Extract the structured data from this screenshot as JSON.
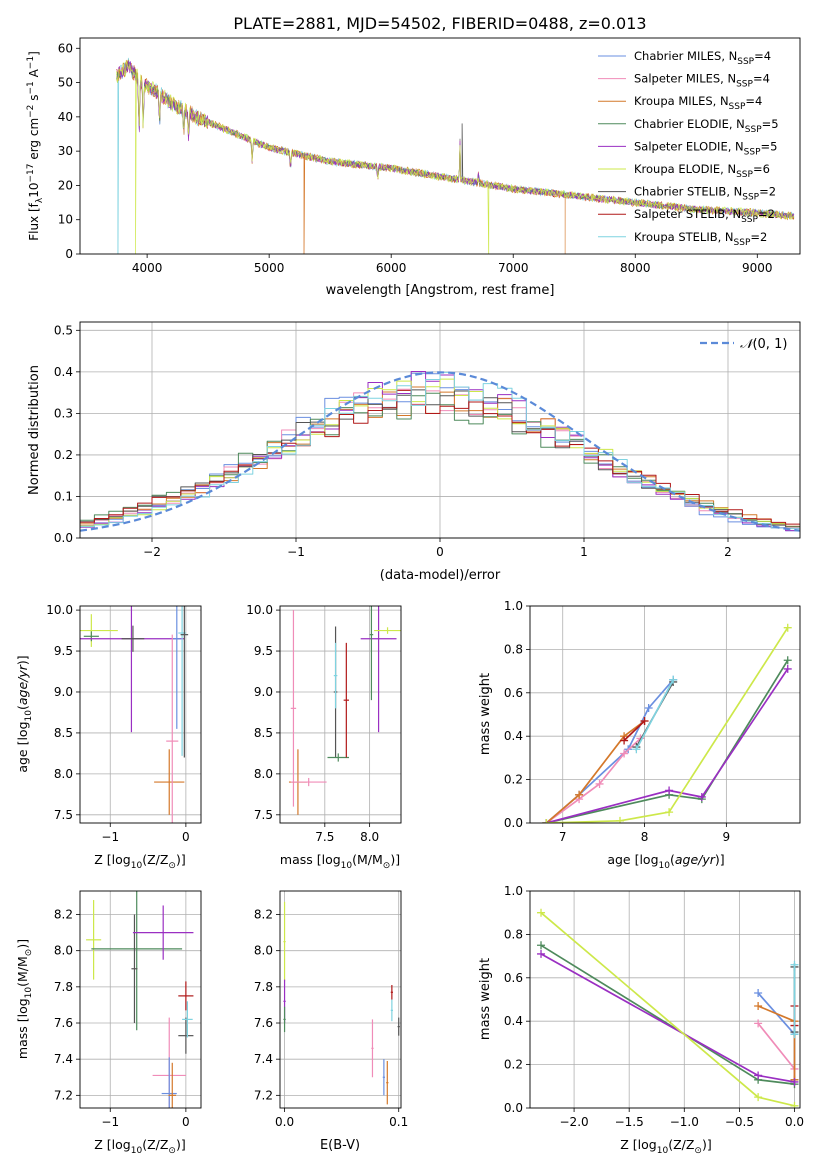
{
  "title": "PLATE=2881, MJD=54502, FIBERID=0488, z=0.013",
  "colors": {
    "Chabrier MILES": "#6a8fe0",
    "Salpeter MILES": "#f08cb8",
    "Kroupa MILES": "#d4782a",
    "Chabrier ELODIE": "#4e8a5c",
    "Salpeter ELODIE": "#9a2fc2",
    "Kroupa ELODIE": "#cde84a",
    "Chabrier STELIB": "#555555",
    "Salpeter STELIB": "#b01818",
    "Kroupa STELIB": "#7fd3e0"
  },
  "chart_data": [
    {
      "id": "spectrum",
      "type": "line",
      "xlabel": "wavelength [Angstrom, rest frame]",
      "ylabel_parts": [
        "Flux [f",
        "λ",
        "10",
        "−17",
        " erg cm",
        "−2",
        " s",
        "−1",
        " A",
        "−1",
        "]"
      ],
      "xlim": [
        3450,
        9350
      ],
      "ylim": [
        0,
        63
      ],
      "xticks": [
        4000,
        5000,
        6000,
        7000,
        8000,
        9000
      ],
      "yticks": [
        0,
        10,
        20,
        30,
        40,
        50,
        60
      ],
      "legend_position": "top-right",
      "legend": [
        {
          "base": "Chabrier MILES, N",
          "sub": "SSP",
          "tail": "=4"
        },
        {
          "base": "Salpeter MILES, N",
          "sub": "SSP",
          "tail": "=4"
        },
        {
          "base": "Kroupa MILES, N",
          "sub": "SSP",
          "tail": "=4"
        },
        {
          "base": "Chabrier ELODIE, N",
          "sub": "SSP",
          "tail": "=5"
        },
        {
          "base": "Salpeter ELODIE, N",
          "sub": "SSP",
          "tail": "=5"
        },
        {
          "base": "Kroupa ELODIE, N",
          "sub": "SSP",
          "tail": "=6"
        },
        {
          "base": "Chabrier STELIB, N",
          "sub": "SSP",
          "tail": "=2"
        },
        {
          "base": "Salpeter STELIB, N",
          "sub": "SSP",
          "tail": "=2"
        },
        {
          "base": "Kroupa STELIB, N",
          "sub": "SSP",
          "tail": "=2"
        }
      ],
      "continuum": [
        [
          3750,
          52
        ],
        [
          3850,
          55
        ],
        [
          3950,
          50
        ],
        [
          4050,
          48
        ],
        [
          4200,
          44
        ],
        [
          4400,
          40
        ],
        [
          4600,
          37
        ],
        [
          4800,
          34
        ],
        [
          5000,
          31
        ],
        [
          5500,
          27
        ],
        [
          6000,
          25
        ],
        [
          6500,
          22
        ],
        [
          7000,
          19
        ],
        [
          7500,
          17
        ],
        [
          8000,
          15
        ],
        [
          8500,
          13
        ],
        [
          9000,
          12
        ],
        [
          9300,
          11
        ]
      ],
      "absorption": [
        [
          3934,
          15
        ],
        [
          3968,
          12
        ],
        [
          4102,
          8
        ],
        [
          4300,
          6
        ],
        [
          4340,
          8
        ],
        [
          4861,
          6
        ],
        [
          5175,
          4
        ],
        [
          5890,
          3
        ]
      ],
      "emission": [
        [
          6563,
          12
        ],
        [
          6716,
          3
        ]
      ],
      "spikes": [
        [
          3760,
          0,
          "Kroupa STELIB"
        ],
        [
          3905,
          0,
          "Kroupa ELODIE"
        ],
        [
          5285,
          0,
          "Kroupa MILES"
        ],
        [
          6580,
          38,
          "Chabrier STELIB"
        ],
        [
          6800,
          0,
          "Kroupa ELODIE"
        ],
        [
          7425,
          0,
          "Kroupa MILES"
        ]
      ]
    },
    {
      "id": "residuals",
      "type": "histogram",
      "xlabel": "(data-model)/error",
      "ylabel": "Normed distribution",
      "xlim": [
        -2.5,
        2.5
      ],
      "ylim": [
        0,
        0.52
      ],
      "xticks": [
        -2,
        -1,
        0,
        1,
        2
      ],
      "yticks": [
        0.0,
        0.1,
        0.2,
        0.3,
        0.4,
        0.5
      ],
      "grid": true,
      "bin_width": 0.1,
      "bin_start": -2.5,
      "reference_curve": "N(0,1)",
      "legend_position": "top-right",
      "legend_parts": [
        "𝒩",
        "(0, 1)"
      ]
    },
    {
      "id": "age-vs-Z",
      "type": "errorbar",
      "xlabel_parts": [
        "Z [log",
        "10",
        "(Z/Z",
        "⊙",
        ")]"
      ],
      "ylabel_parts": [
        "age  [log",
        "10",
        "(",
        "age/yr",
        ")]"
      ],
      "xlim": [
        -1.4,
        0.2
      ],
      "ylim": [
        7.4,
        10.05
      ],
      "xticks": [
        -1,
        0
      ],
      "yticks": [
        7.5,
        8.0,
        8.5,
        9.0,
        9.5,
        10.0
      ],
      "grid": true
    },
    {
      "id": "age-vs-mass",
      "type": "errorbar",
      "xlabel_parts": [
        "mass [log",
        "10",
        "(M/M",
        "⊙",
        ")]"
      ],
      "xlim": [
        7.0,
        8.35
      ],
      "ylim": [
        7.4,
        10.05
      ],
      "xticks": [
        7.5,
        8.0
      ],
      "yticks": [
        7.5,
        8.0,
        8.5,
        9.0,
        9.5,
        10.0
      ],
      "grid": true
    },
    {
      "id": "massweight-vs-age",
      "type": "line",
      "xlabel_parts": [
        "age  [log",
        "10",
        "(",
        "age/yr",
        ")]"
      ],
      "ylabel": "mass weight",
      "xlim": [
        6.6,
        9.9
      ],
      "ylim": [
        0,
        1
      ],
      "xticks": [
        7,
        8,
        9
      ],
      "yticks": [
        0.0,
        0.2,
        0.4,
        0.6,
        0.8,
        1.0
      ],
      "grid": true,
      "series": [
        {
          "name": "Chabrier MILES",
          "x": [
            6.8,
            7.2,
            7.8,
            8.05,
            8.35
          ],
          "y": [
            0.0,
            0.13,
            0.34,
            0.53,
            0.66
          ]
        },
        {
          "name": "Salpeter MILES",
          "x": [
            6.8,
            7.2,
            7.45,
            7.75,
            7.95
          ],
          "y": [
            0.0,
            0.11,
            0.18,
            0.32,
            0.39
          ]
        },
        {
          "name": "Kroupa MILES",
          "x": [
            6.8,
            7.2,
            7.75,
            8.0
          ],
          "y": [
            0.0,
            0.13,
            0.4,
            0.47
          ]
        },
        {
          "name": "Chabrier ELODIE",
          "x": [
            6.8,
            8.3,
            8.7,
            9.75
          ],
          "y": [
            0.0,
            0.13,
            0.11,
            0.75
          ]
        },
        {
          "name": "Salpeter ELODIE",
          "x": [
            6.8,
            8.3,
            8.7,
            9.75
          ],
          "y": [
            0.0,
            0.15,
            0.12,
            0.71
          ]
        },
        {
          "name": "Kroupa ELODIE",
          "x": [
            6.8,
            7.7,
            8.3,
            9.75
          ],
          "y": [
            0.0,
            0.01,
            0.05,
            0.9
          ]
        },
        {
          "name": "Chabrier STELIB",
          "x": [
            7.9,
            8.35
          ],
          "y": [
            0.35,
            0.65
          ]
        },
        {
          "name": "Salpeter STELIB",
          "x": [
            7.75,
            8.0
          ],
          "y": [
            0.38,
            0.47
          ]
        },
        {
          "name": "Kroupa STELIB",
          "x": [
            7.9,
            8.35
          ],
          "y": [
            0.34,
            0.66
          ]
        }
      ]
    },
    {
      "id": "mass-vs-Z",
      "type": "errorbar",
      "xlabel_parts": [
        "Z [log",
        "10",
        "(Z/Z",
        "⊙",
        ")]"
      ],
      "ylabel_parts": [
        "mass [log",
        "10",
        "(M/M",
        "⊙",
        ")]"
      ],
      "xlim": [
        -1.4,
        0.2
      ],
      "ylim": [
        7.13,
        8.33
      ],
      "xticks": [
        -1,
        0
      ],
      "yticks": [
        7.2,
        7.4,
        7.6,
        7.8,
        8.0,
        8.2
      ],
      "grid": true
    },
    {
      "id": "mass-vs-ebv",
      "type": "errorbar",
      "xlabel": "E(B-V)",
      "xlim": [
        -0.004,
        0.102
      ],
      "ylim": [
        7.13,
        8.33
      ],
      "xticks": [
        0.0,
        0.1
      ],
      "yticks": [
        7.2,
        7.4,
        7.6,
        7.8,
        8.0,
        8.2
      ],
      "grid": true
    },
    {
      "id": "massweight-vs-Z",
      "type": "line",
      "xlabel_parts": [
        "Z [log",
        "10",
        "(Z/Z",
        "⊙",
        ")]"
      ],
      "ylabel": "mass weight",
      "xlim": [
        -2.4,
        0.05
      ],
      "ylim": [
        0,
        1
      ],
      "xticks": [
        -2.0,
        -1.5,
        -1.0,
        -0.5,
        0.0
      ],
      "yticks": [
        0.0,
        0.2,
        0.4,
        0.6,
        0.8,
        1.0
      ],
      "grid": true,
      "series": [
        {
          "name": "Chabrier MILES",
          "x": [
            -0.33,
            0.0,
            0.0
          ],
          "y": [
            0.53,
            0.34,
            0.13
          ]
        },
        {
          "name": "Salpeter MILES",
          "x": [
            -0.33,
            0.0,
            0.0
          ],
          "y": [
            0.39,
            0.18,
            0.11
          ]
        },
        {
          "name": "Kroupa MILES",
          "x": [
            -0.33,
            0.0,
            0.0
          ],
          "y": [
            0.47,
            0.4,
            0.13
          ]
        },
        {
          "name": "Chabrier ELODIE",
          "x": [
            -2.3,
            -0.33,
            0.0
          ],
          "y": [
            0.75,
            0.13,
            0.11
          ]
        },
        {
          "name": "Salpeter ELODIE",
          "x": [
            -2.3,
            -0.33,
            0.0
          ],
          "y": [
            0.71,
            0.15,
            0.12
          ]
        },
        {
          "name": "Kroupa ELODIE",
          "x": [
            -2.3,
            -0.33,
            0.0
          ],
          "y": [
            0.9,
            0.05,
            0.01
          ]
        },
        {
          "name": "Chabrier STELIB",
          "x": [
            0.0,
            0.0
          ],
          "y": [
            0.65,
            0.35
          ]
        },
        {
          "name": "Salpeter STELIB",
          "x": [
            0.0,
            0.0
          ],
          "y": [
            0.47,
            0.38
          ]
        },
        {
          "name": "Kroupa STELIB",
          "x": [
            0.0,
            0.0
          ],
          "y": [
            0.66,
            0.34
          ]
        }
      ]
    }
  ]
}
